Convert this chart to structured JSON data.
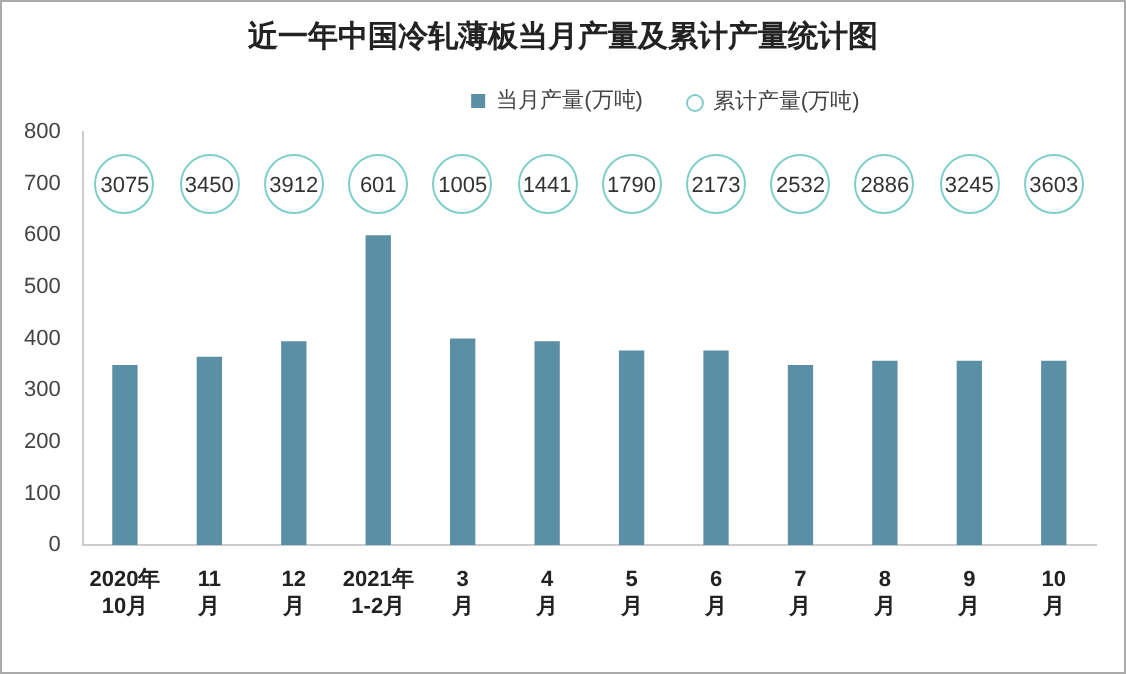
{
  "chart_data": [
    {
      "type": "bar",
      "title": "近一年中国冷轧薄板当月产量及累计产量统计图",
      "categories": [
        "2020年\n10月",
        "11\n月",
        "12\n月",
        "2021年\n1-2月",
        "3\n月",
        "4\n月",
        "5\n月",
        "6\n月",
        "7\n月",
        "8\n月",
        "9\n月",
        "10\n月"
      ],
      "series": [
        {
          "name": "当月产量(万吨)",
          "color": "#5b8fa6",
          "values": [
            349,
            365,
            395,
            600,
            400,
            395,
            377,
            377,
            349,
            357,
            357,
            357
          ]
        }
      ],
      "ylim": [
        0,
        800
      ],
      "yticks": [
        0,
        100,
        200,
        300,
        400,
        500,
        600,
        700,
        800
      ],
      "grid": false,
      "legend": "top"
    },
    {
      "type": "other",
      "series": [
        {
          "name": "累计产量(万吨)",
          "color": "#7fcfc8",
          "values": [
            3075,
            3450,
            3912,
            601,
            1005,
            1441,
            1790,
            2173,
            2532,
            2886,
            3245,
            3603
          ]
        }
      ],
      "data_labels": true,
      "legend": "top"
    }
  ]
}
